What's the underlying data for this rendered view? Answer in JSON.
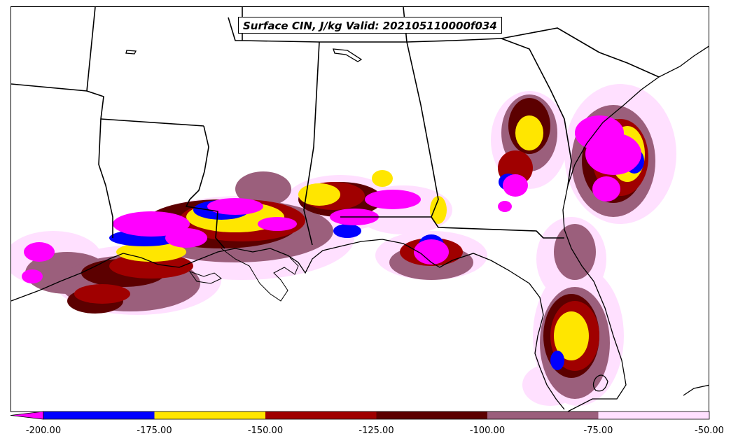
{
  "title": "Surface CIN, J/kg Valid: 202105110000f034",
  "legend": {
    "ticks": [
      "-200.00",
      "-175.00",
      "-150.00",
      "-125.00",
      "-100.00",
      "-75.00",
      "-50.00"
    ],
    "bins": [
      {
        "range": "< -200",
        "color": "#ff00ff"
      },
      {
        "range": "-200 to -175",
        "color": "#0000ff"
      },
      {
        "range": "-175 to -150",
        "color": "#ffe600"
      },
      {
        "range": "-150 to -125",
        "color": "#a00000"
      },
      {
        "range": "-125 to -100",
        "color": "#5c0000"
      },
      {
        "range": "-100 to -75",
        "color": "#9b5f7c"
      },
      {
        "range": "-75 to -50",
        "color": "#ffe0ff"
      }
    ]
  },
  "colors": {
    "magenta": "#ff00ff",
    "blue": "#0000ff",
    "yellow": "#ffe600",
    "red": "#a00000",
    "darkred": "#5c0000",
    "mauve": "#9b5f7c",
    "pink": "#ffe0ff"
  }
}
